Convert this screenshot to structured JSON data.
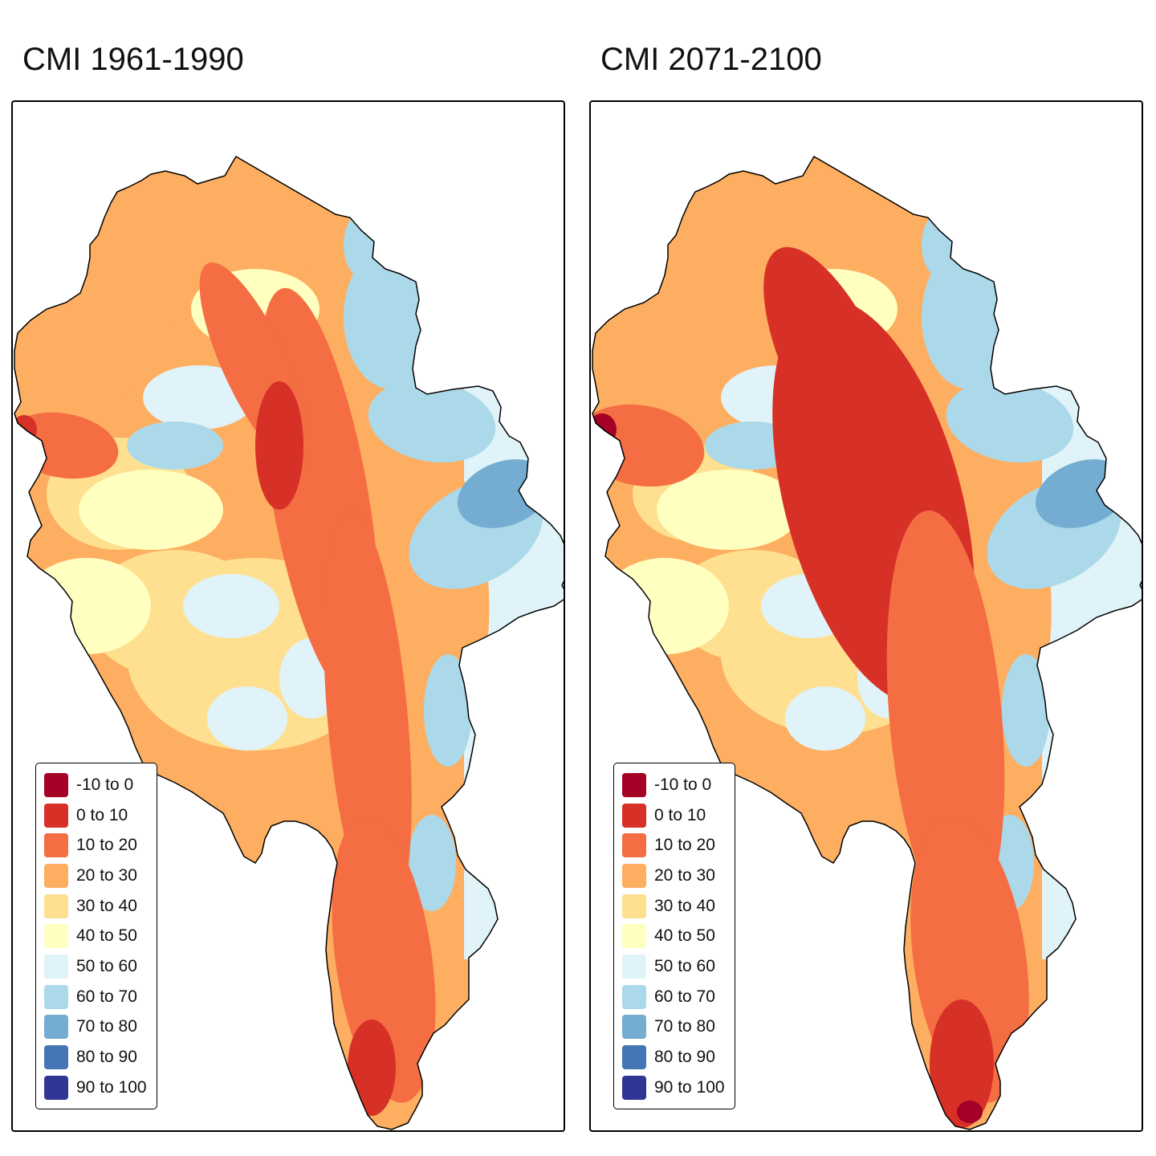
{
  "maps": [
    {
      "title": "CMI 1961-1990",
      "scenario": "historical"
    },
    {
      "title": "CMI 2071-2100",
      "scenario": "future"
    }
  ],
  "legend": {
    "classes": [
      {
        "label": "-10 to 0",
        "color": "#a50026"
      },
      {
        "label": "0 to 10",
        "color": "#d73027"
      },
      {
        "label": "10 to 20",
        "color": "#f46d43"
      },
      {
        "label": "20 to 30",
        "color": "#fdae61"
      },
      {
        "label": "30 to 40",
        "color": "#fee090"
      },
      {
        "label": "40 to 50",
        "color": "#ffffbf"
      },
      {
        "label": "50 to 60",
        "color": "#e0f3f8"
      },
      {
        "label": "60 to 70",
        "color": "#abd9e9"
      },
      {
        "label": "70 to 80",
        "color": "#74add1"
      },
      {
        "label": "80 to 90",
        "color": "#4575b4"
      },
      {
        "label": "90 to 100",
        "color": "#313695"
      }
    ]
  }
}
